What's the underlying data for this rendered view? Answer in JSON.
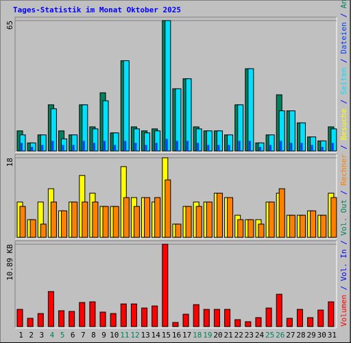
{
  "legend_separator": " / ",
  "chart_data": [
    {
      "type": "bar",
      "title": "Tages-Statistik im Monat Oktober 2025",
      "ylim": [
        0,
        65
      ],
      "yticks": [
        65
      ],
      "series": [
        {
          "name": "Anfragen",
          "color": "#00805c",
          "values": [
            10,
            4,
            8,
            23,
            10,
            8,
            23,
            12,
            29,
            9,
            45,
            12,
            10,
            11,
            65,
            31,
            36,
            12,
            10,
            10,
            8,
            23,
            41,
            4,
            8,
            28,
            20,
            14,
            7,
            5,
            12
          ]
        },
        {
          "name": "Dateien",
          "color": "#0040ff",
          "values": [
            4,
            2,
            3,
            5,
            3,
            3,
            5,
            4,
            5,
            3,
            5,
            4,
            3,
            4,
            6,
            5,
            5,
            4,
            3,
            3,
            3,
            5,
            5,
            2,
            3,
            5,
            4,
            4,
            3,
            2,
            4
          ]
        },
        {
          "name": "Seiten",
          "color": "#00e0ff",
          "values": [
            8,
            4,
            8,
            21,
            6,
            8,
            23,
            11,
            25,
            9,
            45,
            11,
            9,
            10,
            65,
            31,
            36,
            11,
            10,
            10,
            8,
            23,
            41,
            4,
            8,
            20,
            20,
            14,
            7,
            5,
            11
          ]
        }
      ]
    },
    {
      "type": "bar",
      "ylim": [
        0,
        18
      ],
      "yticks": [
        18
      ],
      "series": [
        {
          "name": "Besuche",
          "color": "#ffff00",
          "values": [
            8,
            4,
            8,
            11,
            6,
            8,
            14,
            10,
            7,
            7,
            16,
            9,
            9,
            8,
            18,
            3,
            7,
            8,
            8,
            10,
            9,
            5,
            4,
            4,
            8,
            10,
            5,
            5,
            6,
            5,
            10
          ]
        },
        {
          "name": "Rechner",
          "color": "#ff8000",
          "values": [
            7,
            4,
            3,
            8,
            6,
            8,
            8,
            8,
            7,
            7,
            9,
            7,
            9,
            9,
            13,
            3,
            7,
            7,
            8,
            10,
            9,
            4,
            4,
            3,
            8,
            11,
            5,
            5,
            6,
            5,
            9
          ]
        }
      ]
    },
    {
      "type": "bar",
      "categories": [
        1,
        2,
        3,
        4,
        5,
        6,
        7,
        8,
        9,
        10,
        11,
        12,
        13,
        14,
        15,
        16,
        17,
        18,
        19,
        20,
        21,
        22,
        23,
        24,
        25,
        26,
        27,
        28,
        29,
        30,
        31
      ],
      "label_colors": [
        "#000000",
        "#000000",
        "#000000",
        "#00805c",
        "#00805c",
        "#000000",
        "#000000",
        "#000000",
        "#000000",
        "#000000",
        "#00805c",
        "#00805c",
        "#000000",
        "#000000",
        "#000000",
        "#000000",
        "#000000",
        "#00805c",
        "#00805c",
        "#000000",
        "#000000",
        "#000000",
        "#000000",
        "#000000",
        "#00805c",
        "#00805c",
        "#000000",
        "#000000",
        "#000000",
        "#000000",
        "#000000"
      ],
      "ylim": [
        0,
        10.89
      ],
      "yticks": [
        {
          "value": 10.89,
          "label": "10.89 KB"
        }
      ],
      "series": [
        {
          "name": "Volumen",
          "color": "#ff0000",
          "values": [
            2.27,
            1.09,
            1.72,
            4.63,
            2.09,
            2.0,
            3.18,
            3.27,
            1.91,
            1.72,
            2.99,
            2.99,
            2.45,
            2.72,
            10.89,
            0.54,
            1.63,
            2.9,
            2.27,
            2.27,
            2.27,
            0.91,
            0.64,
            1.18,
            2.45,
            4.27,
            1.09,
            2.27,
            1.18,
            2.18,
            3.27
          ]
        },
        {
          "name": "Vol. In",
          "color": "#0000ff"
        },
        {
          "name": "Vol. Out",
          "color": "#00805c"
        }
      ]
    }
  ]
}
